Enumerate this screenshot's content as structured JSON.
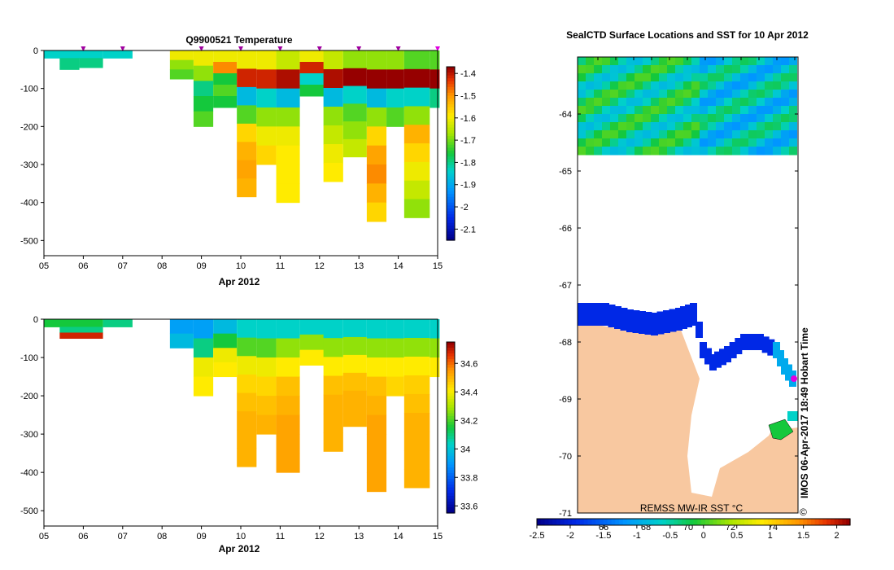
{
  "chart_data": [
    {
      "type": "heatmap",
      "title": "Q9900521  Temperature",
      "xlabel": "Apr 2012",
      "ylabel": "",
      "x_ticks": [
        "05",
        "06",
        "07",
        "08",
        "09",
        "10",
        "11",
        "12",
        "13",
        "14",
        "15"
      ],
      "x_range": [
        5,
        15
      ],
      "y_ticks": [
        "0",
        "-100",
        "-200",
        "-300",
        "-400",
        "-500"
      ],
      "y_range": [
        -540,
        0
      ],
      "colorbar": {
        "range": [
          -2.15,
          -1.37
        ],
        "ticks": [
          "-1.4",
          "-1.5",
          "-1.6",
          "-1.7",
          "-1.8",
          "-1.9",
          "-2",
          "-2.1"
        ]
      },
      "profile_markers_days": [
        6.0,
        7.0,
        9.0,
        10.0,
        11.0,
        12.0,
        13.0,
        14.0,
        15.0
      ],
      "profiles": [
        {
          "x0": 5.0,
          "x1": 6.5,
          "top": 0,
          "bottom": -20,
          "cmap": [
            0.4,
            0.4,
            0.4
          ]
        },
        {
          "x0": 5.4,
          "x1": 5.9,
          "top": -20,
          "bottom": -50,
          "cmap": [
            0.45,
            0.45
          ]
        },
        {
          "x0": 5.9,
          "x1": 6.5,
          "top": -20,
          "bottom": -45,
          "cmap": [
            0.45,
            0.45
          ]
        },
        {
          "x0": 6.5,
          "x1": 7.25,
          "top": 0,
          "bottom": -20,
          "cmap": [
            0.4
          ]
        },
        {
          "x0": 8.2,
          "x1": 8.8,
          "top": 0,
          "bottom": -75,
          "cmap": [
            0.7,
            0.6,
            0.55
          ]
        },
        {
          "x0": 8.8,
          "x1": 9.3,
          "top": 0,
          "bottom": -200,
          "cmap": [
            0.7,
            0.6,
            0.45,
            0.5,
            0.55
          ]
        },
        {
          "x0": 9.3,
          "x1": 9.9,
          "top": 0,
          "bottom": -150,
          "cmap": [
            0.7,
            0.85,
            0.5,
            0.55,
            0.5
          ]
        },
        {
          "x0": 9.9,
          "x1": 10.4,
          "top": 0,
          "bottom": -385,
          "cmap": [
            0.7,
            0.95,
            0.35,
            0.55,
            0.75,
            0.8,
            0.82,
            0.8
          ]
        },
        {
          "x0": 10.4,
          "x1": 10.9,
          "top": 0,
          "bottom": -300,
          "cmap": [
            0.7,
            0.95,
            0.4,
            0.6,
            0.7,
            0.75
          ]
        },
        {
          "x0": 10.9,
          "x1": 11.5,
          "top": 0,
          "bottom": -400,
          "cmap": [
            0.65,
            0.98,
            0.35,
            0.6,
            0.7,
            0.72,
            0.72,
            0.72
          ]
        },
        {
          "x0": 11.5,
          "x1": 12.3,
          "top": 0,
          "bottom": -120,
          "cmap": [
            0.7,
            0.95,
            0.4,
            0.5
          ]
        },
        {
          "x0": 12.1,
          "x1": 12.6,
          "top": 0,
          "bottom": -345,
          "cmap": [
            0.65,
            0.98,
            0.35,
            0.6,
            0.65,
            0.7,
            0.72
          ]
        },
        {
          "x0": 12.6,
          "x1": 13.2,
          "top": 0,
          "bottom": -280,
          "cmap": [
            0.6,
            1.0,
            0.4,
            0.55,
            0.6,
            0.65
          ]
        },
        {
          "x0": 13.2,
          "x1": 13.7,
          "top": 0,
          "bottom": -450,
          "cmap": [
            0.6,
            1.0,
            0.35,
            0.6,
            0.75,
            0.82,
            0.85,
            0.8,
            0.75
          ]
        },
        {
          "x0": 13.7,
          "x1": 14.15,
          "top": 0,
          "bottom": -200,
          "cmap": [
            0.6,
            1.0,
            0.4,
            0.55
          ]
        },
        {
          "x0": 14.15,
          "x1": 14.8,
          "top": 0,
          "bottom": -440,
          "cmap": [
            0.55,
            1.0,
            0.4,
            0.6,
            0.8,
            0.75,
            0.7,
            0.65,
            0.6
          ]
        },
        {
          "x0": 14.8,
          "x1": 15.05,
          "top": 0,
          "bottom": -150,
          "cmap": [
            0.55,
            1.0,
            0.45
          ]
        }
      ]
    },
    {
      "type": "heatmap",
      "title": "",
      "xlabel": "Apr 2012",
      "ylabel": "",
      "x_ticks": [
        "05",
        "06",
        "07",
        "08",
        "09",
        "10",
        "11",
        "12",
        "13",
        "14",
        "15"
      ],
      "x_range": [
        5,
        15
      ],
      "y_ticks": [
        "0",
        "-100",
        "-200",
        "-300",
        "-400",
        "-500"
      ],
      "y_range": [
        -540,
        0
      ],
      "colorbar": {
        "range": [
          33.55,
          34.75
        ],
        "ticks": [
          "34.6",
          "34.4",
          "34.2",
          "34",
          "33.8",
          "33.6"
        ]
      },
      "profiles": [
        {
          "x0": 5.0,
          "x1": 6.5,
          "top": 0,
          "bottom": -20,
          "cmap": [
            0.5,
            0.5
          ]
        },
        {
          "x0": 5.4,
          "x1": 6.5,
          "top": -20,
          "bottom": -50,
          "cmap": [
            0.45,
            0.95
          ]
        },
        {
          "x0": 6.5,
          "x1": 7.25,
          "top": 0,
          "bottom": -20,
          "cmap": [
            0.45
          ]
        },
        {
          "x0": 8.2,
          "x1": 8.8,
          "top": 0,
          "bottom": -75,
          "cmap": [
            0.3,
            0.35
          ]
        },
        {
          "x0": 8.8,
          "x1": 9.3,
          "top": 0,
          "bottom": -200,
          "cmap": [
            0.3,
            0.45,
            0.7,
            0.72
          ]
        },
        {
          "x0": 9.3,
          "x1": 9.9,
          "top": 0,
          "bottom": -150,
          "cmap": [
            0.35,
            0.5,
            0.7,
            0.72
          ]
        },
        {
          "x0": 9.9,
          "x1": 10.4,
          "top": 0,
          "bottom": -385,
          "cmap": [
            0.4,
            0.55,
            0.7,
            0.75,
            0.78,
            0.8,
            0.8,
            0.8
          ]
        },
        {
          "x0": 10.4,
          "x1": 10.9,
          "top": 0,
          "bottom": -300,
          "cmap": [
            0.4,
            0.55,
            0.7,
            0.75,
            0.78,
            0.8
          ]
        },
        {
          "x0": 10.9,
          "x1": 11.5,
          "top": 0,
          "bottom": -400,
          "cmap": [
            0.4,
            0.6,
            0.72,
            0.78,
            0.8,
            0.82,
            0.82,
            0.82
          ]
        },
        {
          "x0": 11.5,
          "x1": 12.3,
          "top": 0,
          "bottom": -120,
          "cmap": [
            0.4,
            0.6,
            0.72
          ]
        },
        {
          "x0": 12.1,
          "x1": 12.6,
          "top": 0,
          "bottom": -345,
          "cmap": [
            0.4,
            0.6,
            0.72,
            0.78,
            0.8,
            0.8,
            0.8
          ]
        },
        {
          "x0": 12.6,
          "x1": 13.2,
          "top": 0,
          "bottom": -280,
          "cmap": [
            0.4,
            0.6,
            0.72,
            0.78,
            0.8,
            0.8
          ]
        },
        {
          "x0": 13.2,
          "x1": 13.7,
          "top": 0,
          "bottom": -450,
          "cmap": [
            0.4,
            0.6,
            0.72,
            0.78,
            0.8,
            0.82,
            0.82,
            0.82,
            0.82
          ]
        },
        {
          "x0": 13.7,
          "x1": 14.15,
          "top": 0,
          "bottom": -200,
          "cmap": [
            0.4,
            0.6,
            0.72,
            0.75
          ]
        },
        {
          "x0": 14.15,
          "x1": 14.8,
          "top": 0,
          "bottom": -440,
          "cmap": [
            0.4,
            0.6,
            0.72,
            0.76,
            0.78,
            0.8,
            0.8,
            0.8,
            0.8
          ]
        },
        {
          "x0": 14.8,
          "x1": 15.05,
          "top": 0,
          "bottom": -150,
          "cmap": [
            0.4,
            0.6,
            0.72
          ]
        }
      ]
    },
    {
      "type": "heatmap",
      "title": "SealCTD Surface Locations and SST for 10 Apr 2012",
      "xlabel": "",
      "ylabel": "",
      "x_ticks": [
        "66",
        "68",
        "70",
        "72",
        "74"
      ],
      "y_ticks": [
        "-64",
        "-65",
        "-66",
        "-67",
        "-68",
        "-69",
        "-70",
        "-71"
      ],
      "y_range": [
        -71,
        -63
      ],
      "annotation": "REMSS MW-IR SST °C",
      "side_label": "IMOS 06-Apr-2017 18:49 Hobart Time",
      "copyright": "©",
      "colorbar": {
        "range": [
          -2.5,
          2.2
        ],
        "ticks": [
          "-2.5",
          "-2",
          "-1.5",
          "-1",
          "-0.5",
          "0",
          "0.5",
          "1",
          "1.5",
          "2"
        ]
      }
    }
  ]
}
